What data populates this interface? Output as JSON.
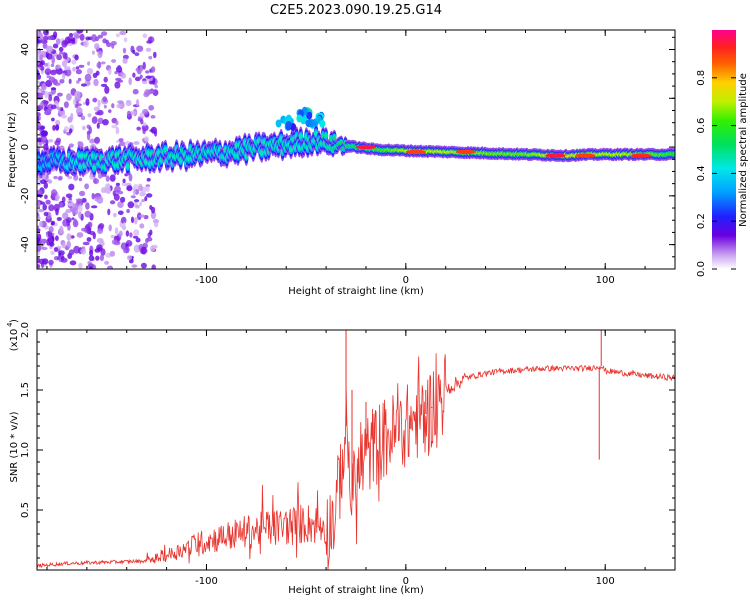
{
  "page_title": "C2E5.2023.090.19.25.G14",
  "colors": {
    "snr_line": "#e8322c",
    "axis": "#000000",
    "background": "#ffffff"
  },
  "chart_data": [
    {
      "type": "heatmap",
      "panel": "top",
      "title": "C2E5.2023.090.19.25.G14",
      "xlabel": "Height of straight line (km)",
      "ylabel": "Frequency (Hz)",
      "xlim": [
        -185,
        135
      ],
      "ylim": [
        -50,
        48
      ],
      "x_ticks": [
        -100,
        0,
        100
      ],
      "x_tick_labels": [
        "-100",
        "0",
        "100"
      ],
      "y_ticks": [
        -40,
        -20,
        0,
        20,
        40
      ],
      "y_tick_labels": [
        "-40",
        "-20",
        "0",
        "20",
        "40"
      ],
      "colorbar": {
        "label": "Normalized spectral amplitude",
        "range": [
          0.0,
          1.0
        ],
        "ticks": [
          0.0,
          0.2,
          0.4,
          0.6,
          0.8
        ],
        "tick_labels": [
          "0.0",
          "0.2",
          "0.4",
          "0.6",
          "0.8"
        ]
      },
      "ridge": [
        {
          "height": -180,
          "freq": -6,
          "width": 4,
          "amp": 0.35
        },
        {
          "height": -160,
          "freq": -6,
          "width": 4,
          "amp": 0.45
        },
        {
          "height": -140,
          "freq": -5,
          "width": 4,
          "amp": 0.45
        },
        {
          "height": -120,
          "freq": -4,
          "width": 4,
          "amp": 0.45
        },
        {
          "height": -100,
          "freq": -3,
          "width": 4,
          "amp": 0.45
        },
        {
          "height": -80,
          "freq": -1,
          "width": 4,
          "amp": 0.45
        },
        {
          "height": -60,
          "freq": 1,
          "width": 4,
          "amp": 0.45
        },
        {
          "height": -45,
          "freq": 3,
          "width": 4,
          "amp": 0.45
        },
        {
          "height": -35,
          "freq": 1,
          "width": 3,
          "amp": 0.5
        },
        {
          "height": -25,
          "freq": 0,
          "width": 2.5,
          "amp": 0.55
        },
        {
          "height": -15,
          "freq": -1,
          "width": 2.5,
          "amp": 0.6
        },
        {
          "height": 0,
          "freq": -1.5,
          "width": 2.5,
          "amp": 0.7
        },
        {
          "height": 20,
          "freq": -2,
          "width": 2.5,
          "amp": 0.7
        },
        {
          "height": 40,
          "freq": -2.5,
          "width": 2.5,
          "amp": 0.65
        },
        {
          "height": 60,
          "freq": -3,
          "width": 2.5,
          "amp": 0.65
        },
        {
          "height": 80,
          "freq": -3.5,
          "width": 2.5,
          "amp": 0.75
        },
        {
          "height": 95,
          "freq": -3,
          "width": 2.5,
          "amp": 0.7
        },
        {
          "height": 110,
          "freq": -3,
          "width": 2.5,
          "amp": 0.7
        },
        {
          "height": 135,
          "freq": -3,
          "width": 2.5,
          "amp": 0.6
        }
      ],
      "secondary_branch": [
        {
          "height": -60,
          "freq": 10,
          "width": 3,
          "amp": 0.4
        },
        {
          "height": -50,
          "freq": 13,
          "width": 3,
          "amp": 0.45
        },
        {
          "height": -45,
          "freq": 11,
          "width": 3,
          "amp": 0.4
        }
      ],
      "peaks": [
        {
          "height": -20,
          "freq": 0,
          "amp": 0.95
        },
        {
          "height": 5,
          "freq": -2,
          "amp": 0.9
        },
        {
          "height": 30,
          "freq": -2,
          "amp": 0.9
        },
        {
          "height": 75,
          "freq": -3.5,
          "amp": 0.95
        },
        {
          "height": 90,
          "freq": -3.5,
          "amp": 0.9
        },
        {
          "height": 118,
          "freq": -3.5,
          "amp": 0.92
        }
      ]
    },
    {
      "type": "line",
      "panel": "bottom",
      "xlabel": "Height of straight line (km)",
      "ylabel": "SNR (10 * v/v)",
      "y_scale_note": "(x10",
      "y_scale_exponent": "4",
      "xlim": [
        -185,
        135
      ],
      "ylim": [
        0,
        2.0
      ],
      "x_ticks": [
        -100,
        0,
        100
      ],
      "x_tick_labels": [
        "-100",
        "0",
        "100"
      ],
      "y_ticks": [
        0.5,
        1.0,
        1.5,
        2.0
      ],
      "y_tick_labels": [
        "0.5",
        "1.0",
        "1.5",
        "2.0"
      ],
      "series": [
        {
          "name": "SNR",
          "x": [
            -185,
            -170,
            -150,
            -130,
            -120,
            -110,
            -100,
            -90,
            -80,
            -70,
            -60,
            -50,
            -40,
            -35,
            -32,
            -30,
            -27,
            -24,
            -20,
            -15,
            -10,
            -5,
            0,
            5,
            10,
            15,
            20,
            25,
            30,
            40,
            50,
            60,
            70,
            80,
            90,
            95,
            98,
            100,
            110,
            120,
            135
          ],
          "y": [
            0.02,
            0.04,
            0.05,
            0.06,
            0.1,
            0.15,
            0.2,
            0.23,
            0.26,
            0.28,
            0.3,
            0.32,
            0.3,
            0.5,
            0.9,
            1.2,
            0.6,
            0.8,
            0.95,
            1.05,
            1.1,
            1.15,
            1.2,
            1.25,
            1.3,
            1.4,
            1.5,
            1.55,
            1.6,
            1.64,
            1.66,
            1.67,
            1.68,
            1.68,
            1.68,
            1.69,
            1.7,
            1.66,
            1.64,
            1.62,
            1.6
          ]
        }
      ],
      "spikes": [
        {
          "x": -30,
          "y": 2.0
        },
        {
          "x": -27,
          "y": 1.5
        },
        {
          "x": -20,
          "y": 1.4
        },
        {
          "x": 10,
          "y": 1.5
        },
        {
          "x": 13,
          "y": 1.35
        },
        {
          "x": 98,
          "y": 2.0
        },
        {
          "x": 97,
          "y": 0.92
        }
      ]
    }
  ]
}
